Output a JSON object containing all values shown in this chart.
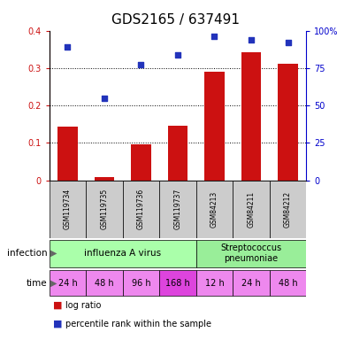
{
  "title": "GDS2165 / 637491",
  "samples": [
    "GSM119734",
    "GSM119735",
    "GSM119736",
    "GSM119737",
    "GSM84213",
    "GSM84211",
    "GSM84212"
  ],
  "log_ratio": [
    0.143,
    0.008,
    0.095,
    0.145,
    0.29,
    0.343,
    0.311
  ],
  "percentile_rank_pct": [
    89,
    55,
    77,
    84,
    96,
    94,
    92
  ],
  "bar_color": "#cc1111",
  "dot_color": "#2233bb",
  "infection_labels": [
    "influenza A virus",
    "Streptococcus\npneumoniae"
  ],
  "infection_colors": [
    "#aaffaa",
    "#99ee99"
  ],
  "time_labels": [
    "24 h",
    "48 h",
    "96 h",
    "168 h",
    "12 h",
    "24 h",
    "48 h"
  ],
  "time_colors": [
    "#ee88ee",
    "#ee88ee",
    "#ee88ee",
    "#dd44dd",
    "#ee88ee",
    "#ee88ee",
    "#ee88ee"
  ],
  "ylim_left": [
    0,
    0.4
  ],
  "ylim_right": [
    0,
    100
  ],
  "yticks_left": [
    0,
    0.1,
    0.2,
    0.3,
    0.4
  ],
  "ytick_labels_left": [
    "0",
    "0.1",
    "0.2",
    "0.3",
    "0.4"
  ],
  "yticks_right": [
    0,
    25,
    50,
    75,
    100
  ],
  "ytick_labels_right": [
    "0",
    "25",
    "50",
    "75",
    "100%"
  ],
  "background_color": "#ffffff",
  "title_fontsize": 11,
  "legend_red": "log ratio",
  "legend_blue": "percentile rank within the sample",
  "sample_bg_color": "#cccccc",
  "grid_lines": [
    0.1,
    0.2,
    0.3
  ]
}
